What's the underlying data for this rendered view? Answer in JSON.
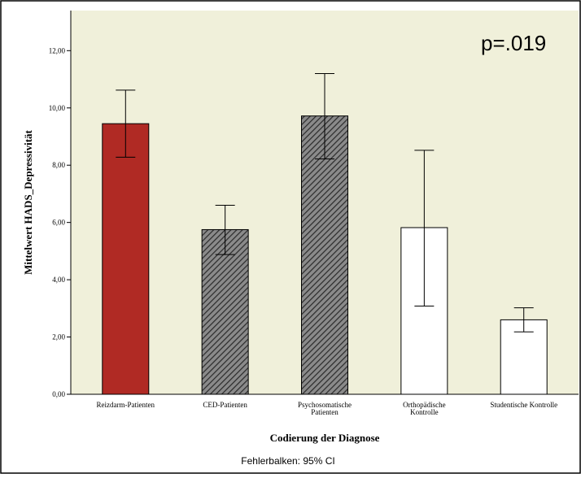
{
  "chart_data": {
    "type": "bar",
    "categories": [
      [
        "Reizdarm-Patienten"
      ],
      [
        "CED-Patienten"
      ],
      [
        "Psychosomatische",
        "Patienten"
      ],
      [
        "Orthopädische",
        "Kontrolle"
      ],
      [
        "Studentische Kontrolle"
      ]
    ],
    "values": [
      9.45,
      5.75,
      9.72,
      5.82,
      2.6
    ],
    "error_low": [
      8.28,
      4.88,
      8.22,
      3.08,
      2.18
    ],
    "error_high": [
      10.62,
      6.6,
      11.2,
      8.52,
      3.02
    ],
    "bar_styles": [
      "solid",
      "hatched",
      "hatched",
      "plain",
      "plain"
    ],
    "xlabel": "Codierung der Diagnose",
    "ylabel": "Mittelwert HADS_Depressivität",
    "ylim": [
      0,
      13.4
    ],
    "yticks": [
      0,
      2,
      4,
      6,
      8,
      10,
      12
    ],
    "ytick_labels": [
      "0,00",
      "2,00",
      "4,00",
      "6,00",
      "8,00",
      "10,00",
      "12,00"
    ],
    "annotation": "p=.019",
    "note": "Fehlerbalken: 95% CI",
    "grid": false,
    "legend": "none"
  },
  "colors": {
    "background": "#ffffff",
    "plot_area": "#f0f0da",
    "solid_bar": "#b02a24",
    "hatched_bar_bg": "#8a8a8a",
    "hatch_line": "#2a2a2a",
    "plain_bar": "#ffffff",
    "outline": "#000000"
  }
}
